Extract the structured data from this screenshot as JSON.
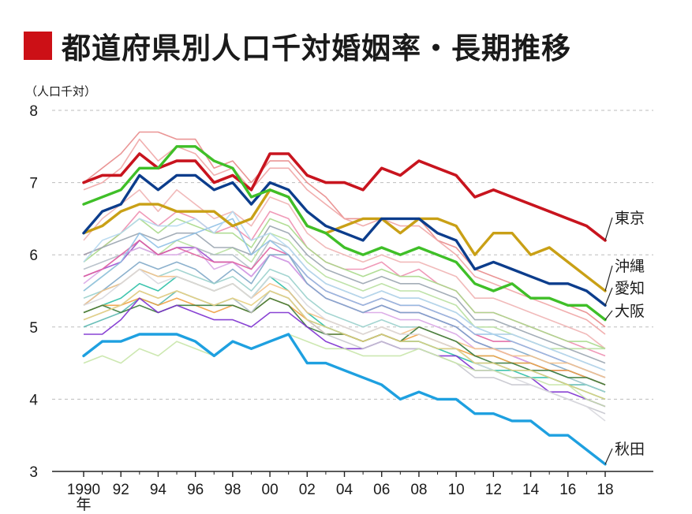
{
  "title": "都道府県別人口千対婚姻率・長期推移",
  "chart_data": {
    "type": "line",
    "title": "都道府県別人口千対婚姻率・長期推移",
    "unit_label": "（人口千対）",
    "x_suffix_label": "年",
    "xlabel": "",
    "ylabel": "",
    "ylim": [
      3,
      8
    ],
    "y_ticks": [
      "3",
      "4",
      "5",
      "6",
      "7",
      "8"
    ],
    "x_ticks": [
      {
        "x": 1990,
        "label": "1990"
      },
      {
        "x": 1992,
        "label": "92"
      },
      {
        "x": 1994,
        "label": "94"
      },
      {
        "x": 1996,
        "label": "96"
      },
      {
        "x": 1998,
        "label": "98"
      },
      {
        "x": 2000,
        "label": "00"
      },
      {
        "x": 2002,
        "label": "02"
      },
      {
        "x": 2004,
        "label": "04"
      },
      {
        "x": 2006,
        "label": "06"
      },
      {
        "x": 2008,
        "label": "08"
      },
      {
        "x": 2010,
        "label": "10"
      },
      {
        "x": 2012,
        "label": "12"
      },
      {
        "x": 2014,
        "label": "14"
      },
      {
        "x": 2016,
        "label": "16"
      },
      {
        "x": 2018,
        "label": "18"
      }
    ],
    "grid": "horizontal dashed",
    "x": [
      1990,
      1991,
      1992,
      1993,
      1994,
      1995,
      1996,
      1997,
      1998,
      1999,
      2000,
      2001,
      2002,
      2003,
      2004,
      2005,
      2006,
      2007,
      2008,
      2009,
      2010,
      2011,
      2012,
      2013,
      2014,
      2015,
      2016,
      2017,
      2018
    ],
    "series": [
      {
        "name": "東京",
        "color": "#c8141e",
        "width": 3.6,
        "values": [
          7.0,
          7.1,
          7.1,
          7.4,
          7.2,
          7.3,
          7.3,
          7.0,
          7.1,
          6.9,
          7.4,
          7.4,
          7.1,
          7.0,
          7.0,
          6.9,
          7.2,
          7.1,
          7.3,
          7.2,
          7.1,
          6.8,
          6.9,
          6.8,
          6.7,
          6.6,
          6.5,
          6.4,
          6.2
        ]
      },
      {
        "name": "沖縄",
        "color": "#c9a016",
        "width": 3.4,
        "values": [
          6.3,
          6.4,
          6.6,
          6.7,
          6.7,
          6.6,
          6.6,
          6.6,
          6.4,
          6.5,
          6.9,
          6.8,
          6.4,
          6.3,
          6.4,
          6.5,
          6.5,
          6.3,
          6.5,
          6.5,
          6.4,
          6.0,
          6.3,
          6.3,
          6.0,
          6.1,
          5.9,
          5.7,
          5.5
        ]
      },
      {
        "name": "愛知",
        "color": "#0c3d8c",
        "width": 3.4,
        "values": [
          6.3,
          6.6,
          6.7,
          7.1,
          6.9,
          7.1,
          7.1,
          6.9,
          7.0,
          6.7,
          7.0,
          6.9,
          6.6,
          6.4,
          6.3,
          6.2,
          6.5,
          6.5,
          6.5,
          6.3,
          6.2,
          5.8,
          5.9,
          5.8,
          5.7,
          5.6,
          5.6,
          5.5,
          5.3
        ]
      },
      {
        "name": "大阪",
        "color": "#3fbf28",
        "width": 3.4,
        "values": [
          6.7,
          6.8,
          6.9,
          7.2,
          7.2,
          7.5,
          7.5,
          7.3,
          7.2,
          6.8,
          6.9,
          6.8,
          6.4,
          6.3,
          6.1,
          6.0,
          6.1,
          6.0,
          6.1,
          6.0,
          5.9,
          5.6,
          5.5,
          5.6,
          5.4,
          5.4,
          5.3,
          5.3,
          5.1
        ]
      },
      {
        "name": "秋田",
        "color": "#1ea0e0",
        "width": 3.4,
        "values": [
          4.6,
          4.8,
          4.8,
          4.9,
          4.9,
          4.9,
          4.8,
          4.6,
          4.8,
          4.7,
          4.8,
          4.9,
          4.5,
          4.5,
          4.4,
          4.3,
          4.2,
          4.0,
          4.1,
          4.0,
          4.0,
          3.8,
          3.8,
          3.7,
          3.7,
          3.5,
          3.5,
          3.3,
          3.1
        ]
      }
    ],
    "background_series": [
      {
        "color": "#e88a8a",
        "values": [
          7.0,
          7.2,
          7.4,
          7.7,
          7.7,
          7.6,
          7.6,
          7.2,
          7.3,
          7.0,
          7.3,
          7.3,
          7.0,
          6.8,
          6.5,
          6.5,
          6.5,
          6.5,
          6.5,
          6.2,
          6.1,
          5.8,
          5.7,
          5.6,
          5.4,
          5.4,
          5.3,
          5.2,
          5.0
        ]
      },
      {
        "color": "#f0a5a5",
        "values": [
          6.9,
          7.0,
          7.2,
          7.6,
          7.3,
          7.5,
          7.4,
          7.1,
          7.2,
          6.9,
          7.2,
          7.2,
          6.9,
          6.7,
          6.5,
          6.4,
          6.5,
          6.4,
          6.4,
          6.2,
          6.0,
          5.7,
          5.6,
          5.5,
          5.4,
          5.3,
          5.2,
          5.1,
          4.9
        ]
      },
      {
        "color": "#f0b3b3",
        "values": [
          6.2,
          6.5,
          6.7,
          6.9,
          6.6,
          6.9,
          6.7,
          6.5,
          6.6,
          6.4,
          6.8,
          6.7,
          6.3,
          6.1,
          6.0,
          5.9,
          6.0,
          5.9,
          5.9,
          5.8,
          5.7,
          5.4,
          5.4,
          5.3,
          5.2,
          5.1,
          5.0,
          4.9,
          4.7
        ]
      },
      {
        "color": "#ee8fb0",
        "values": [
          6.0,
          6.1,
          6.3,
          6.6,
          6.4,
          6.6,
          6.5,
          6.3,
          6.4,
          6.2,
          6.6,
          6.5,
          6.1,
          5.9,
          5.8,
          5.8,
          5.9,
          5.7,
          5.8,
          5.6,
          5.5,
          5.2,
          5.2,
          5.1,
          5.0,
          4.9,
          4.8,
          4.7,
          4.6
        ]
      },
      {
        "color": "#a8d98a",
        "values": [
          5.9,
          6.1,
          6.3,
          6.5,
          6.3,
          6.5,
          6.4,
          6.3,
          6.3,
          6.1,
          6.5,
          6.4,
          6.1,
          5.9,
          5.8,
          5.7,
          5.8,
          5.7,
          5.7,
          5.6,
          5.5,
          5.2,
          5.2,
          5.1,
          5.0,
          4.9,
          4.8,
          4.8,
          4.7
        ]
      },
      {
        "color": "#b8e0a0",
        "values": [
          5.5,
          5.7,
          5.9,
          6.2,
          6.0,
          6.2,
          6.1,
          6.0,
          6.1,
          5.9,
          6.3,
          6.2,
          5.9,
          5.7,
          5.6,
          5.5,
          5.6,
          5.5,
          5.5,
          5.4,
          5.3,
          5.0,
          5.0,
          4.9,
          4.8,
          4.7,
          4.7,
          4.7,
          4.7
        ]
      },
      {
        "color": "#9aa5b0",
        "values": [
          6.0,
          6.1,
          6.2,
          6.3,
          6.2,
          6.3,
          6.3,
          6.1,
          6.1,
          6.0,
          6.4,
          6.3,
          6.0,
          5.8,
          5.7,
          5.6,
          5.7,
          5.6,
          5.6,
          5.5,
          5.4,
          5.1,
          5.1,
          5.0,
          4.9,
          4.8,
          4.7,
          4.6,
          4.5
        ]
      },
      {
        "color": "#b3bcc6",
        "values": [
          5.8,
          5.9,
          6.0,
          6.1,
          6.0,
          6.1,
          6.1,
          6.0,
          6.0,
          5.8,
          6.2,
          6.1,
          5.8,
          5.6,
          5.5,
          5.4,
          5.5,
          5.4,
          5.4,
          5.3,
          5.2,
          5.0,
          4.9,
          4.9,
          4.8,
          4.7,
          4.6,
          4.5,
          4.4
        ]
      },
      {
        "color": "#a04fd0",
        "values": [
          5.7,
          5.8,
          5.9,
          6.2,
          6.0,
          6.1,
          6.1,
          5.9,
          5.9,
          5.7,
          6.0,
          5.9,
          5.6,
          5.4,
          5.3,
          5.2,
          5.3,
          5.2,
          5.2,
          5.1,
          5.0,
          4.8,
          4.7,
          4.6,
          4.5,
          4.4,
          4.4,
          4.3,
          4.2
        ]
      },
      {
        "color": "#d9a6e6",
        "values": [
          5.6,
          5.8,
          6.0,
          6.1,
          6.0,
          6.0,
          6.1,
          5.8,
          5.9,
          5.7,
          6.0,
          5.9,
          5.6,
          5.4,
          5.3,
          5.2,
          5.2,
          5.1,
          5.1,
          5.0,
          4.9,
          4.7,
          4.7,
          4.6,
          4.5,
          4.4,
          4.3,
          4.2,
          4.1
        ]
      },
      {
        "color": "#e060a0",
        "values": [
          5.7,
          5.8,
          6.0,
          6.2,
          6.0,
          6.1,
          6.0,
          5.9,
          5.9,
          5.8,
          6.1,
          6.0,
          5.7,
          5.5,
          5.4,
          5.3,
          5.4,
          5.3,
          5.3,
          5.2,
          5.1,
          4.9,
          4.8,
          4.8,
          4.7,
          4.6,
          4.5,
          4.4,
          4.3
        ]
      },
      {
        "color": "#8fc0e6",
        "values": [
          5.5,
          5.7,
          5.9,
          6.3,
          6.1,
          6.2,
          6.3,
          6.4,
          6.5,
          6.0,
          6.2,
          6.0,
          5.7,
          5.5,
          5.4,
          5.3,
          5.4,
          5.3,
          5.3,
          5.2,
          5.1,
          4.9,
          4.9,
          4.8,
          4.7,
          4.6,
          4.5,
          4.4,
          4.3
        ]
      },
      {
        "color": "#b5d8f0",
        "values": [
          5.9,
          6.2,
          6.3,
          6.5,
          6.4,
          6.4,
          6.5,
          6.3,
          6.6,
          6.2,
          6.3,
          6.1,
          5.8,
          5.6,
          5.5,
          5.4,
          5.5,
          5.4,
          5.4,
          5.3,
          5.2,
          5.0,
          4.9,
          4.9,
          4.8,
          4.7,
          4.6,
          4.5,
          4.4
        ]
      },
      {
        "color": "#7fa8c8",
        "values": [
          5.3,
          5.5,
          5.7,
          5.9,
          5.8,
          5.9,
          5.8,
          5.6,
          5.8,
          5.6,
          6.0,
          6.0,
          5.6,
          5.4,
          5.3,
          5.2,
          5.3,
          5.2,
          5.2,
          5.1,
          5.0,
          4.8,
          4.7,
          4.7,
          4.6,
          4.5,
          4.4,
          4.3,
          4.2
        ]
      },
      {
        "color": "#5ab8b0",
        "values": [
          5.0,
          5.1,
          5.2,
          5.4,
          5.3,
          5.5,
          5.4,
          5.3,
          5.4,
          5.2,
          5.5,
          5.4,
          5.1,
          5.0,
          4.9,
          4.8,
          4.9,
          4.8,
          4.8,
          4.7,
          4.7,
          4.5,
          4.5,
          4.4,
          4.4,
          4.3,
          4.2,
          4.2,
          4.1
        ]
      },
      {
        "color": "#2bbfa6",
        "values": [
          5.2,
          5.3,
          5.4,
          5.6,
          5.5,
          5.7,
          5.6,
          5.5,
          5.6,
          5.4,
          5.7,
          5.5,
          5.2,
          5.0,
          4.9,
          4.8,
          4.9,
          4.8,
          4.8,
          4.7,
          4.6,
          4.5,
          4.4,
          4.4,
          4.3,
          4.3,
          4.2,
          4.1,
          4.0
        ]
      },
      {
        "color": "#9ad0cc",
        "values": [
          5.4,
          5.5,
          5.6,
          5.8,
          5.7,
          5.8,
          5.7,
          5.6,
          5.7,
          5.5,
          5.8,
          5.7,
          5.4,
          5.2,
          5.1,
          5.0,
          5.1,
          5.0,
          5.0,
          4.9,
          4.8,
          4.6,
          4.6,
          4.5,
          4.5,
          4.4,
          4.3,
          4.2,
          4.1
        ]
      },
      {
        "color": "#f0a040",
        "values": [
          5.2,
          5.3,
          5.3,
          5.4,
          5.3,
          5.4,
          5.3,
          5.2,
          5.3,
          5.2,
          5.4,
          5.3,
          5.1,
          4.9,
          4.9,
          4.8,
          4.9,
          4.8,
          4.9,
          4.8,
          4.7,
          4.6,
          4.6,
          4.5,
          4.5,
          4.4,
          4.4,
          4.3,
          4.2
        ]
      },
      {
        "color": "#f5c28a",
        "values": [
          5.3,
          5.5,
          5.6,
          5.8,
          5.7,
          5.7,
          5.6,
          5.5,
          5.6,
          5.4,
          5.6,
          5.5,
          5.2,
          5.1,
          5.0,
          4.9,
          5.0,
          4.9,
          5.0,
          4.9,
          4.8,
          4.7,
          4.7,
          4.6,
          4.6,
          4.5,
          4.5,
          4.4,
          4.3
        ]
      },
      {
        "color": "#3a7a3a",
        "values": [
          5.2,
          5.3,
          5.2,
          5.3,
          5.2,
          5.3,
          5.3,
          5.3,
          5.3,
          5.2,
          5.4,
          5.3,
          5.0,
          4.9,
          4.9,
          4.8,
          4.9,
          4.8,
          5.0,
          4.9,
          4.8,
          4.6,
          4.5,
          4.5,
          4.4,
          4.4,
          4.3,
          4.3,
          4.2
        ]
      },
      {
        "color": "#7c2fcf",
        "values": [
          4.9,
          4.9,
          5.1,
          5.4,
          5.2,
          5.3,
          5.2,
          5.1,
          5.1,
          5.0,
          5.2,
          5.2,
          5.0,
          4.8,
          4.7,
          4.7,
          4.8,
          4.7,
          4.7,
          4.6,
          4.6,
          4.4,
          4.4,
          4.3,
          4.3,
          4.1,
          4.1,
          4.0,
          3.9
        ]
      },
      {
        "color": "#c6c6ce",
        "values": [
          5.1,
          5.2,
          5.3,
          5.5,
          5.4,
          5.5,
          5.4,
          5.3,
          5.4,
          5.2,
          5.5,
          5.4,
          5.1,
          4.9,
          4.8,
          4.7,
          4.8,
          4.7,
          4.7,
          4.6,
          4.5,
          4.3,
          4.3,
          4.2,
          4.2,
          4.1,
          4.0,
          3.9,
          3.8
        ]
      },
      {
        "color": "#d8d8de",
        "values": [
          5.3,
          5.4,
          5.6,
          5.8,
          5.6,
          5.7,
          5.6,
          5.5,
          5.6,
          5.4,
          5.7,
          5.6,
          5.3,
          5.1,
          5.0,
          4.9,
          5.0,
          4.9,
          4.9,
          4.8,
          4.7,
          4.5,
          4.4,
          4.3,
          4.2,
          4.1,
          4.0,
          3.9,
          3.7
        ]
      },
      {
        "color": "#c8e6a8",
        "values": [
          4.5,
          4.6,
          4.5,
          4.7,
          4.6,
          4.8,
          4.7,
          4.6,
          4.8,
          4.7,
          4.8,
          4.9,
          4.8,
          4.7,
          4.7,
          4.6,
          4.6,
          4.6,
          4.7,
          4.6,
          4.5,
          4.4,
          4.4,
          4.3,
          4.3,
          4.2,
          4.2,
          4.0,
          3.9
        ]
      },
      {
        "color": "#e6d080",
        "values": [
          5.1,
          5.2,
          5.3,
          5.5,
          5.4,
          5.5,
          5.4,
          5.3,
          5.4,
          5.3,
          5.5,
          5.4,
          5.1,
          5.0,
          4.9,
          4.8,
          4.9,
          4.8,
          4.8,
          4.7,
          4.7,
          4.5,
          4.5,
          4.4,
          4.4,
          4.3,
          4.2,
          4.1,
          4.0
        ]
      }
    ],
    "end_labels": [
      {
        "text": "東京",
        "series": "東京"
      },
      {
        "text": "沖縄",
        "series": "沖縄"
      },
      {
        "text": "愛知",
        "series": "愛知"
      },
      {
        "text": "大阪",
        "series": "大阪"
      },
      {
        "text": "秋田",
        "series": "秋田"
      }
    ]
  }
}
